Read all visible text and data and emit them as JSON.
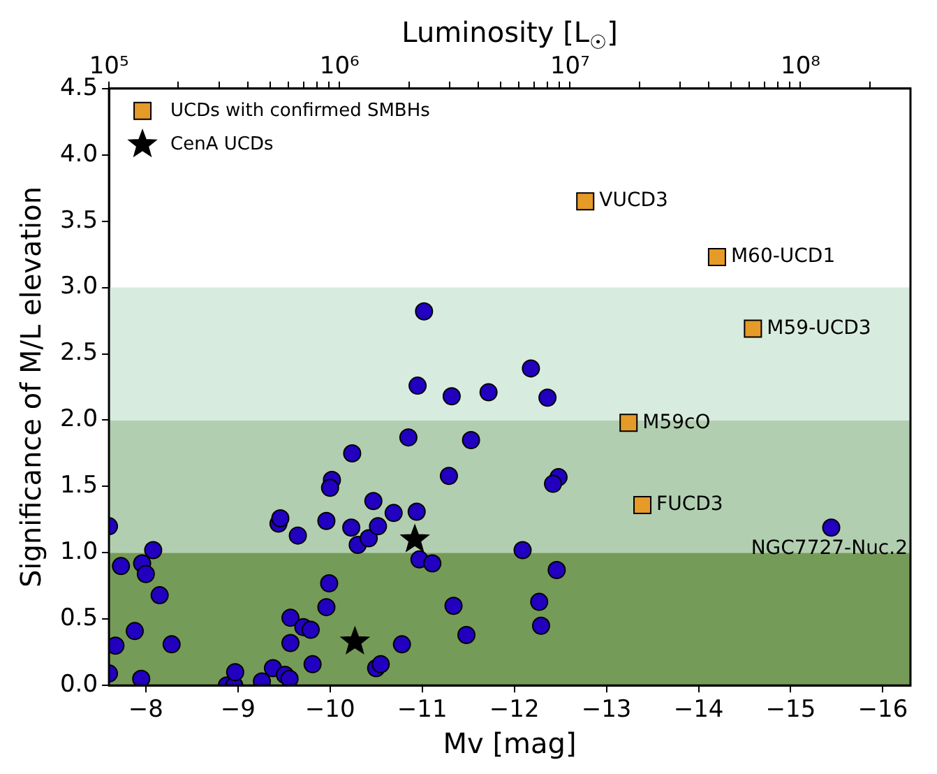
{
  "chart_data": {
    "type": "scatter",
    "xlabel": "Mv [mag]",
    "ylabel": "Significance of M/L elevation",
    "x2label": "Luminosity [L$_{☉}$]",
    "xlim": [
      -7.6,
      -16.3
    ],
    "xticks": [
      {
        "value": -8,
        "label": "−8"
      },
      {
        "value": -9,
        "label": "−9"
      },
      {
        "value": -10,
        "label": "−10"
      },
      {
        "value": -11,
        "label": "−11"
      },
      {
        "value": -12,
        "label": "−12"
      },
      {
        "value": -13,
        "label": "−13"
      },
      {
        "value": -14,
        "label": "−14"
      },
      {
        "value": -15,
        "label": "−15"
      },
      {
        "value": -16,
        "label": "−16"
      }
    ],
    "x2lim": [
      100000,
      300000000
    ],
    "x2ticks": [
      {
        "value": 100000,
        "label": "10⁵"
      },
      {
        "value": 200000,
        "label": null
      },
      {
        "value": 300000,
        "label": null
      },
      {
        "value": 400000,
        "label": null
      },
      {
        "value": 500000,
        "label": null
      },
      {
        "value": 600000,
        "label": null
      },
      {
        "value": 700000,
        "label": null
      },
      {
        "value": 800000,
        "label": null
      },
      {
        "value": 900000,
        "label": null
      },
      {
        "value": 1000000,
        "label": "10⁶"
      },
      {
        "value": 2000000,
        "label": null
      },
      {
        "value": 3000000,
        "label": null
      },
      {
        "value": 4000000,
        "label": null
      },
      {
        "value": 5000000,
        "label": null
      },
      {
        "value": 6000000,
        "label": null
      },
      {
        "value": 7000000,
        "label": null
      },
      {
        "value": 8000000,
        "label": null
      },
      {
        "value": 9000000,
        "label": null
      },
      {
        "value": 10000000,
        "label": "10⁷"
      },
      {
        "value": 20000000,
        "label": null
      },
      {
        "value": 30000000,
        "label": null
      },
      {
        "value": 40000000,
        "label": null
      },
      {
        "value": 50000000,
        "label": null
      },
      {
        "value": 60000000,
        "label": null
      },
      {
        "value": 70000000,
        "label": null
      },
      {
        "value": 80000000,
        "label": null
      },
      {
        "value": 90000000,
        "label": null
      },
      {
        "value": 100000000,
        "label": "10⁸"
      },
      {
        "value": 200000000,
        "label": null
      }
    ],
    "log": "x2",
    "ylim": [
      0,
      4.5
    ],
    "yticks": [
      {
        "value": 0,
        "label": "0.0"
      },
      0.5,
      {
        "value": 1,
        "label": "1.0"
      },
      1.5,
      {
        "value": 2,
        "label": "2.0"
      },
      2.5,
      {
        "value": 3,
        "label": "3.0"
      },
      3.5,
      {
        "value": 4,
        "label": "4.0"
      },
      4.5
    ],
    "grid": false,
    "legend": "top left",
    "bands": [
      {
        "axis": "y",
        "from": 0,
        "to": 1,
        "color": "#759b58"
      },
      {
        "axis": "y",
        "from": 1,
        "to": 2,
        "color": "#b1cfb0"
      },
      {
        "axis": "y",
        "from": 2,
        "to": 3,
        "color": "#d8ebdf"
      }
    ],
    "series": [
      {
        "type": "scatter",
        "marker": "circle",
        "color": "#2200c0",
        "x": [
          -7.6,
          -7.73,
          -7.96,
          -8.0,
          -8.08,
          -8.15,
          -7.88,
          -7.67,
          -7.6,
          -7.95,
          -8.28,
          -8.88,
          -8.96,
          -8.97,
          -9.26,
          -9.38,
          -9.51,
          -9.56,
          -9.44,
          -9.46,
          -9.65,
          -9.57,
          -9.57,
          -9.71,
          -9.79,
          -9.81,
          -9.96,
          -9.99,
          -9.96,
          -10.02,
          -10.0,
          -10.24,
          -10.23,
          -10.3,
          -10.42,
          -10.47,
          -10.52,
          -10.69,
          -10.5,
          -10.55,
          -10.78,
          -10.85,
          -10.94,
          -10.97,
          -11.11,
          -10.95,
          -11.02,
          -11.32,
          -11.72,
          -11.53,
          -11.29,
          -11.34,
          -11.48,
          -12.18,
          -12.36,
          -12.48,
          -12.42,
          -12.09,
          -12.46,
          -12.27,
          -12.29,
          -15.44
        ],
        "values": [
          1.2,
          0.9,
          0.92,
          0.84,
          1.02,
          0.68,
          0.41,
          0.3,
          0.09,
          0.05,
          0.31,
          0.0,
          0.0,
          0.1,
          0.03,
          0.13,
          0.08,
          0.05,
          1.22,
          1.26,
          1.13,
          0.51,
          0.32,
          0.44,
          0.42,
          0.16,
          0.59,
          0.77,
          1.24,
          1.55,
          1.49,
          1.75,
          1.19,
          1.06,
          1.11,
          1.39,
          1.2,
          1.3,
          0.13,
          0.16,
          0.31,
          1.87,
          1.31,
          0.95,
          0.92,
          2.26,
          2.82,
          2.18,
          2.21,
          1.85,
          1.58,
          0.6,
          0.38,
          2.39,
          2.17,
          1.57,
          1.52,
          1.02,
          0.87,
          0.63,
          0.45,
          1.19
        ]
      },
      {
        "type": "scatter",
        "name": "UCDs with confirmed SMBHs",
        "marker": "square",
        "color": "#e69a28",
        "x": [
          -12.77,
          -14.2,
          -14.59,
          -13.24,
          -13.39
        ],
        "values": [
          3.65,
          3.23,
          2.69,
          1.98,
          1.36
        ]
      },
      {
        "type": "scatter",
        "name": "CenA UCDs",
        "marker": "star",
        "color": "#000000",
        "x": [
          -10.27,
          -10.92
        ],
        "values": [
          0.33,
          1.1
        ]
      }
    ],
    "annotations": [
      {
        "text": "VUCD3",
        "x": -12.77,
        "y": 3.65
      },
      {
        "text": "M60-UCD1",
        "x": -14.2,
        "y": 3.23
      },
      {
        "text": "M59-UCD3",
        "x": -14.59,
        "y": 2.69
      },
      {
        "text": "M59cO",
        "x": -13.24,
        "y": 1.98
      },
      {
        "text": "FUCD3",
        "x": -13.39,
        "y": 1.36
      },
      {
        "text": "NGC7727-Nuc.2",
        "x": -15.44,
        "y": 1.19
      }
    ]
  }
}
